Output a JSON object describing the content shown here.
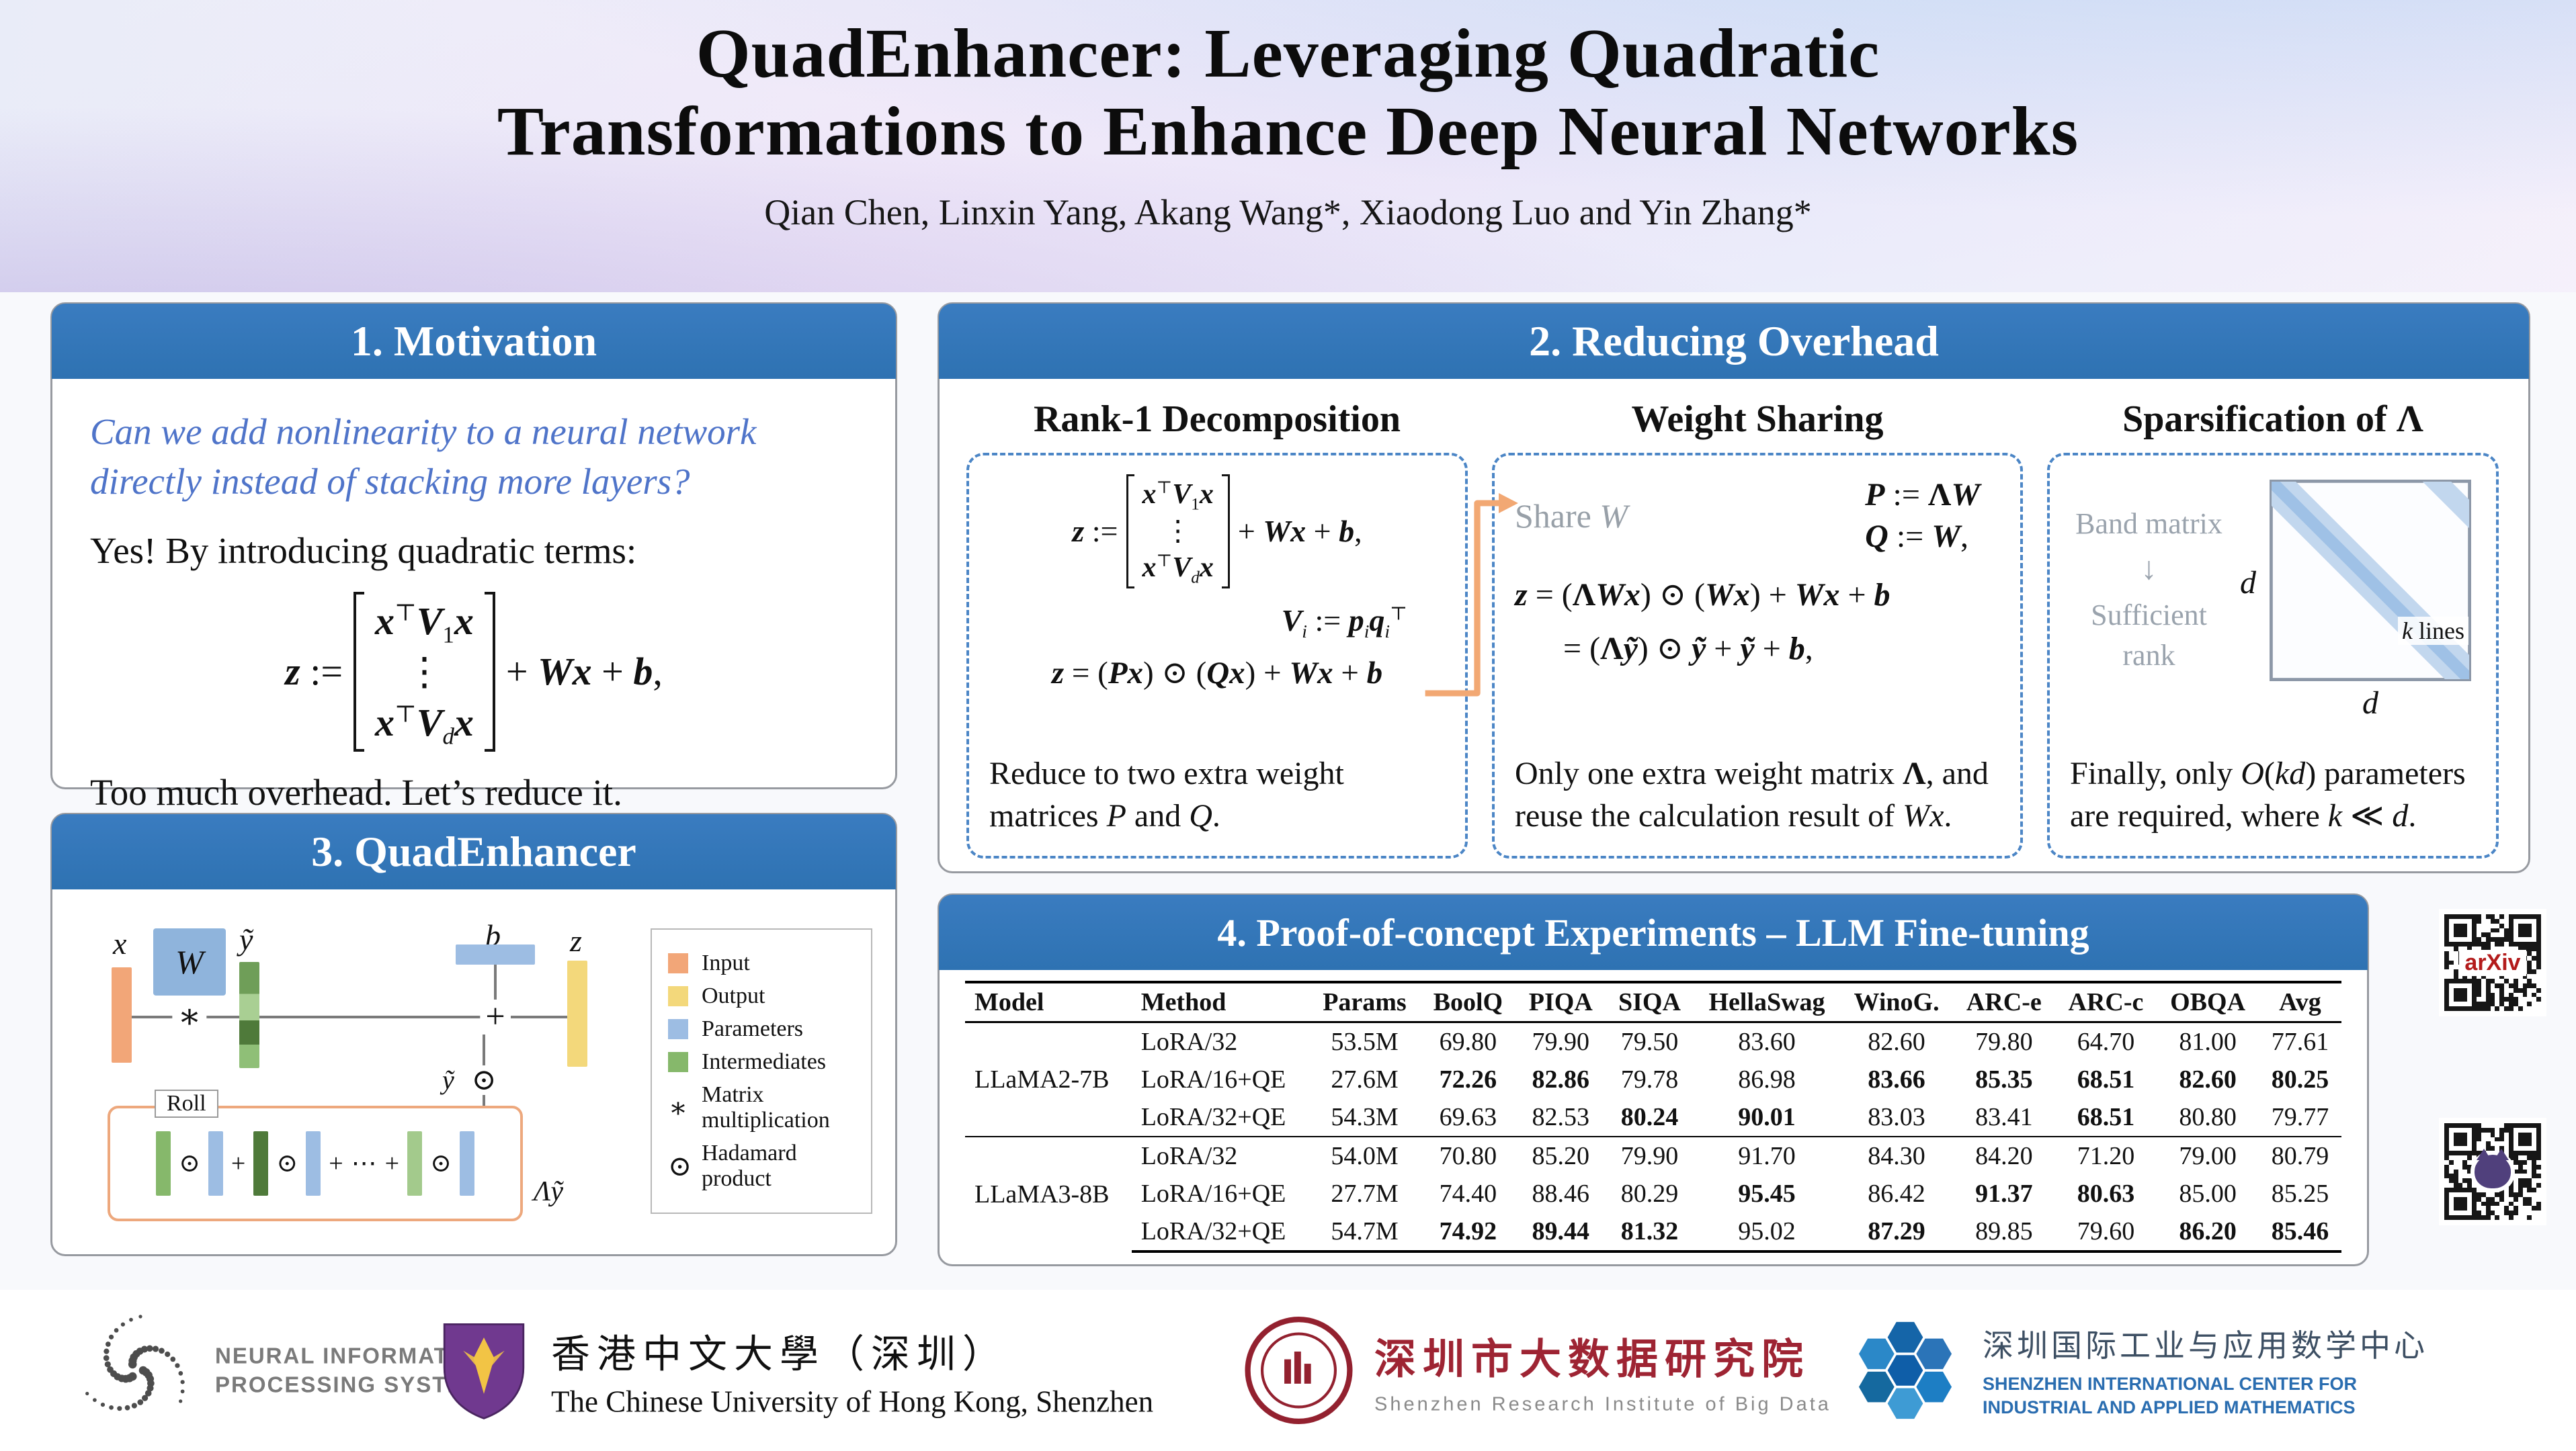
{
  "colors": {
    "section_header": "#2e72b2",
    "question_blue": "#4f74c9",
    "dashed_border": "#4c86c6",
    "accent_arrow": "#f2a873",
    "input_orange": "#f2a678",
    "output_yellow": "#f3d87b",
    "parameter_blue": "#9dbde3",
    "intermediate_green": "#86b86b",
    "roll_border": "#eda87d",
    "cuhk_purple": "#70398f",
    "sribd_red": "#9e2433",
    "siciam_blue": "#2a6db0",
    "arxiv_red": "#b31b1b"
  },
  "header": {
    "title_line1": "QuadEnhancer: Leveraging Quadratic",
    "title_line2": "Transformations to Enhance Deep Neural Networks",
    "authors": "Qian Chen, Linxin Yang, Akang Wang*, Xiaodong Luo and Yin Zhang*"
  },
  "motivation": {
    "title": "1. Motivation",
    "question": "Can we add nonlinearity to a neural network directly instead of stacking more layers?",
    "answer": "Yes! By introducing quadratic terms:",
    "conclusion": "Too much overhead. Let’s reduce it."
  },
  "math": {
    "z_lhs": "<b><i>z</i></b> :=",
    "z_rows": [
      "<b><i>x</i></b><sup>⊤</sup><b><i>V</i></b><sub>1</sub><b><i>x</i></b>",
      "⋮",
      "<b><i>x</i></b><sup>⊤</sup><b><i>V</i></b><sub><i>d</i></sub><b><i>x</i></b>"
    ],
    "z_rhs": "+ <b><i>Wx</i></b> + <b><i>b</i></b>,",
    "vi_def": "<b><i>V</i></b><sub><i>i</i></sub> := <b><i>p</i></b><sub><i>i</i></sub><b><i>q</i></b><sub><i>i</i></sub><sup>⊤</sup>",
    "z_pq": "<b><i>z</i></b> = (<b><i>Px</i></b>) ⊙ (<b><i>Qx</i></b>) + <b><i>Wx</i></b> + <b><i>b</i></b>",
    "p_def": "<b><i>P</i></b> := <b>Λ</b><b><i>W</i></b>",
    "q_def": "<b><i>Q</i></b> := <b><i>W</i></b>,",
    "z_share1": "<b><i>z</i></b> = (<b>Λ</b><b><i>Wx</i></b>) ⊙ (<b><i>Wx</i></b>) + <b><i>Wx</i></b> + <b><i>b</i></b>",
    "z_share2": "= (<b>Λ</b><b><i>ỹ</i></b>) ⊙ <b><i>ỹ</i></b> + <b><i>ỹ</i></b> + <b><i>b</i></b>,"
  },
  "reducing": {
    "title": "2. Reducing Overhead",
    "rank1": {
      "heading": "Rank-1 Decomposition",
      "caption": "Reduce to two extra weight matrices <i>P</i> and <i>Q</i>."
    },
    "sharing": {
      "heading": "Weight Sharing",
      "share_label": "Share <i>W</i>",
      "caption": "Only one extra weight matrix <b>Λ</b>, and reuse the calculation result of <i>Wx</i>."
    },
    "sparsification": {
      "heading": "Sparsification of <b>Λ</b>",
      "band_label": "Band matrix",
      "arrow_down": "↓",
      "rank_label": "Sufficient rank",
      "dim_left": "d",
      "dim_bottom": "d",
      "k_lines": "<i>k</i> lines",
      "caption": "Finally, only <i>O</i>(<i>kd</i>) parameters are required, where <i>k</i> ≪ <i>d</i>."
    }
  },
  "quadenhancer": {
    "title": "3. QuadEnhancer",
    "labels": {
      "x": "x",
      "w": "W",
      "y_tilde": "ỹ",
      "b": "b",
      "z": "z",
      "roll": "Roll",
      "lambda_y": "Λỹ",
      "y_small": "ỹ",
      "hadamard": "⊙",
      "matmul": "∗",
      "plus": "+",
      "dots": "⋯"
    },
    "legend": [
      {
        "label": "Input"
      },
      {
        "label": "Output"
      },
      {
        "label": "Parameters"
      },
      {
        "label": "Intermediates"
      },
      {
        "symbol": "∗",
        "label": "Matrix multiplication"
      },
      {
        "symbol": "⊙",
        "label": "Hadamard product"
      }
    ]
  },
  "experiments": {
    "title": "4. Proof-of-concept Experiments – LLM Fine-tuning",
    "table": {
      "columns": [
        "Model",
        "Method",
        "Params",
        "BoolQ",
        "PIQA",
        "SIQA",
        "HellaSwag",
        "WinoG.",
        "ARC-e",
        "ARC-c",
        "OBQA",
        "Avg"
      ],
      "groups": [
        {
          "model": "LLaMA2-7B",
          "rows": [
            {
              "method": "LoRA/32",
              "params": "53.5M",
              "values": [
                "69.80",
                "79.90",
                "79.50",
                "83.60",
                "82.60",
                "79.80",
                "64.70",
                "81.00",
                "77.61"
              ],
              "bold": []
            },
            {
              "method": "LoRA/16+QE",
              "params": "27.6M",
              "values": [
                "72.26",
                "82.86",
                "79.78",
                "86.98",
                "83.66",
                "85.35",
                "68.51",
                "82.60",
                "80.25"
              ],
              "bold": [
                0,
                1,
                4,
                5,
                6,
                7,
                8
              ]
            },
            {
              "method": "LoRA/32+QE",
              "params": "54.3M",
              "values": [
                "69.63",
                "82.53",
                "80.24",
                "90.01",
                "83.03",
                "83.41",
                "68.51",
                "80.80",
                "79.77"
              ],
              "bold": [
                2,
                3,
                6
              ]
            }
          ]
        },
        {
          "model": "LLaMA3-8B",
          "rows": [
            {
              "method": "LoRA/32",
              "params": "54.0M",
              "values": [
                "70.80",
                "85.20",
                "79.90",
                "91.70",
                "84.30",
                "84.20",
                "71.20",
                "79.00",
                "80.79"
              ],
              "bold": []
            },
            {
              "method": "LoRA/16+QE",
              "params": "27.7M",
              "values": [
                "74.40",
                "88.46",
                "80.29",
                "95.45",
                "86.42",
                "91.37",
                "80.63",
                "85.00",
                "85.25"
              ],
              "bold": [
                3,
                5,
                6
              ]
            },
            {
              "method": "LoRA/32+QE",
              "params": "54.7M",
              "values": [
                "74.92",
                "89.44",
                "81.32",
                "95.02",
                "87.29",
                "89.85",
                "79.60",
                "86.20",
                "85.46"
              ],
              "bold": [
                0,
                1,
                2,
                4,
                7,
                8
              ]
            }
          ]
        }
      ]
    }
  },
  "qr": {
    "arxiv_label": "arXiv"
  },
  "footer": {
    "neurips": {
      "line1": "NEURAL INFORMATION",
      "line2": "PROCESSING SYSTEMS"
    },
    "cuhk": {
      "cn": "香港中文大學（深圳）",
      "en": "The Chinese University of Hong Kong, Shenzhen"
    },
    "sribd": {
      "cn": "深圳市大数据研究院",
      "en": "Shenzhen Research Institute of Big Data"
    },
    "siciam": {
      "cn": "深圳国际工业与应用数学中心",
      "en_line1": "SHENZHEN INTERNATIONAL CENTER FOR",
      "en_line2": "INDUSTRIAL AND APPLIED MATHEMATICS"
    }
  }
}
